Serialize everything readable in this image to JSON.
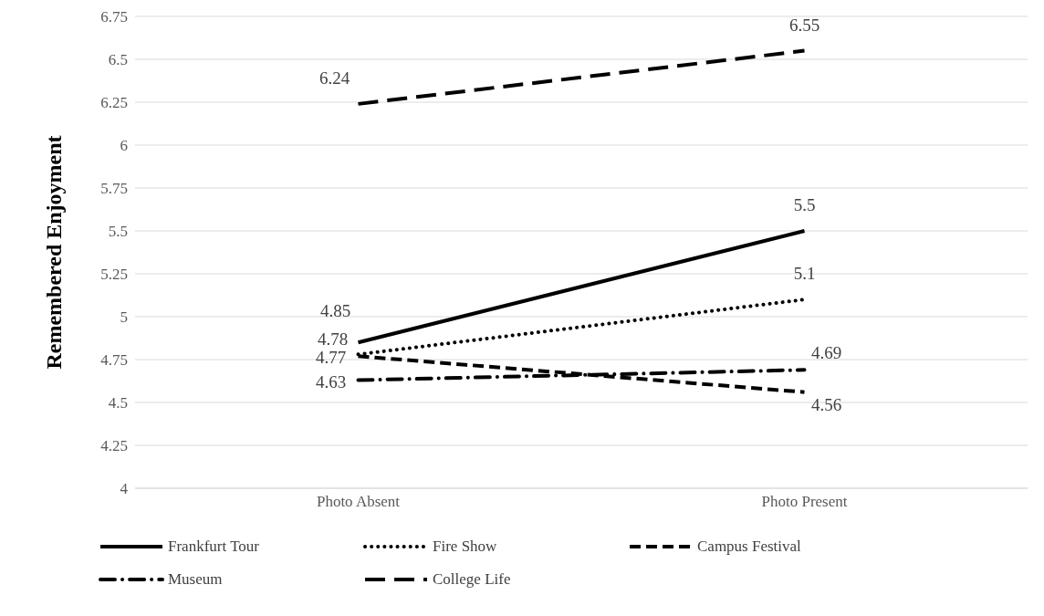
{
  "chart_data": {
    "type": "line",
    "ylabel": "Remembered Enjoyment",
    "categories": [
      "Photo Absent",
      "Photo Present"
    ],
    "series": [
      {
        "name": "Frankfurt Tour",
        "color": "#000000",
        "line_style": "solid",
        "values": [
          4.85,
          5.5
        ]
      },
      {
        "name": "Fire Show",
        "color": "#000000",
        "line_style": "dotted",
        "values": [
          4.78,
          5.1
        ]
      },
      {
        "name": "Campus Festival",
        "color": "#000000",
        "line_style": "dashed",
        "values": [
          4.77,
          4.56
        ]
      },
      {
        "name": "Museum",
        "color": "#000000",
        "line_style": "dashdot",
        "values": [
          4.63,
          4.69
        ]
      },
      {
        "name": "College Life",
        "color": "#000000",
        "line_style": "longdash",
        "values": [
          6.24,
          6.55
        ]
      }
    ],
    "ylim": [
      4,
      6.75
    ],
    "yticks": [
      4,
      4.25,
      4.5,
      4.75,
      5,
      5.25,
      5.5,
      5.75,
      6,
      6.25,
      6.5,
      6.75
    ],
    "grid": "y",
    "legend": "bottom",
    "marker": "none",
    "data_labels": true
  }
}
